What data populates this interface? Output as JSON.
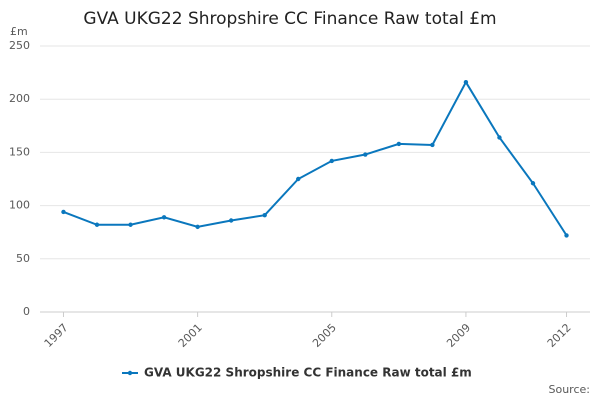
{
  "chart_data": {
    "type": "line",
    "title": "GVA UKG22 Shropshire CC Finance Raw total £m",
    "y_label": "£m",
    "x": [
      1997,
      1998,
      1999,
      2000,
      2001,
      2002,
      2003,
      2004,
      2005,
      2006,
      2007,
      2008,
      2009,
      2010,
      2011,
      2012
    ],
    "series": [
      {
        "name": "GVA UKG22 Shropshire CC Finance Raw total £m",
        "color": "#0a77bd",
        "values": [
          94,
          82,
          82,
          89,
          80,
          86,
          91,
          125,
          142,
          148,
          158,
          157,
          216,
          164,
          121,
          72
        ]
      }
    ],
    "xlim": [
      1996.3,
      2012.7
    ],
    "xticks": [
      1997,
      2001,
      2005,
      2009,
      2012
    ],
    "ylim": [
      0,
      250
    ],
    "yticks": [
      0,
      50,
      100,
      150,
      200,
      250
    ],
    "grid": true,
    "legend": "bottom",
    "source": "Source:"
  }
}
